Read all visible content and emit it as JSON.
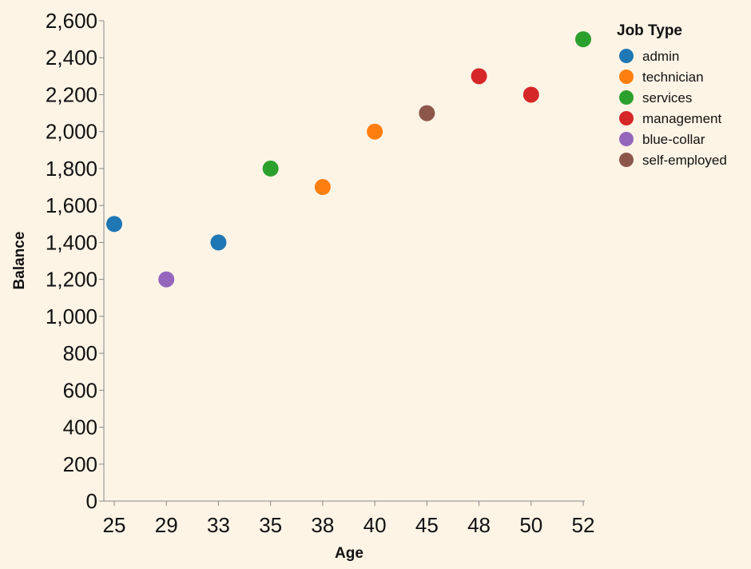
{
  "chart_data": {
    "type": "scatter",
    "title": "",
    "xlabel": "Age",
    "ylabel": "Balance",
    "x_type": "ordinal",
    "x_categories": [
      "25",
      "29",
      "33",
      "35",
      "38",
      "40",
      "45",
      "48",
      "50",
      "52"
    ],
    "ylim": [
      0,
      2600
    ],
    "y_ticks": [
      0,
      200,
      400,
      600,
      800,
      1000,
      1200,
      1400,
      1600,
      1800,
      2000,
      2200,
      2400,
      2600
    ],
    "y_tick_labels": [
      "0",
      "200",
      "400",
      "600",
      "800",
      "1,000",
      "1,200",
      "1,400",
      "1,600",
      "1,800",
      "2,000",
      "2,200",
      "2,400",
      "2,600"
    ],
    "grid": false,
    "legend": {
      "title": "Job Type",
      "placement": "top-right",
      "entries": [
        {
          "label": "admin",
          "color": "#1f77b4"
        },
        {
          "label": "technician",
          "color": "#ff7f0e"
        },
        {
          "label": "services",
          "color": "#2ca02c"
        },
        {
          "label": "management",
          "color": "#d62728"
        },
        {
          "label": "blue-collar",
          "color": "#9467bd"
        },
        {
          "label": "self-employed",
          "color": "#8c564b"
        }
      ]
    },
    "points": [
      {
        "x": "25",
        "y": 1500,
        "job": "admin"
      },
      {
        "x": "29",
        "y": 1200,
        "job": "blue-collar"
      },
      {
        "x": "33",
        "y": 1400,
        "job": "admin"
      },
      {
        "x": "35",
        "y": 1800,
        "job": "services"
      },
      {
        "x": "38",
        "y": 1700,
        "job": "technician"
      },
      {
        "x": "40",
        "y": 2000,
        "job": "technician"
      },
      {
        "x": "45",
        "y": 2100,
        "job": "self-employed"
      },
      {
        "x": "48",
        "y": 2300,
        "job": "management"
      },
      {
        "x": "50",
        "y": 2200,
        "job": "management"
      },
      {
        "x": "52",
        "y": 2500,
        "job": "services"
      }
    ],
    "background_color": "#fdf4e6"
  }
}
